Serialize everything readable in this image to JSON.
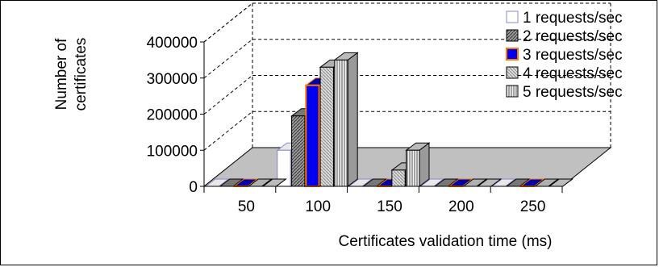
{
  "chart_data": {
    "type": "bar",
    "title": "",
    "xlabel": "Certificates validation time (ms)",
    "ylabel_lines": [
      "Number of",
      "certificates"
    ],
    "categories": [
      "50",
      "100",
      "150",
      "200",
      "250"
    ],
    "y_ticks": [
      "0",
      "100000",
      "200000",
      "300000",
      "400000"
    ],
    "ylim": [
      0,
      400000
    ],
    "legend_position": "top-right",
    "grid": true,
    "series": [
      {
        "name": "1 requests/sec",
        "values": [
          0,
          100000,
          0,
          0,
          0
        ],
        "color": "#ffffff",
        "edge": "#8888cc"
      },
      {
        "name": "2 requests/sec",
        "values": [
          0,
          195000,
          0,
          0,
          0
        ],
        "color": "#808080",
        "edge": "#000000"
      },
      {
        "name": "3 requests/sec",
        "values": [
          0,
          280000,
          0,
          0,
          0
        ],
        "color": "#0000ee",
        "edge": "#ff7700"
      },
      {
        "name": "4 requests/sec",
        "values": [
          0,
          330000,
          45000,
          0,
          0
        ],
        "color": "#c8c8c8",
        "edge": "#000000"
      },
      {
        "name": "5 requests/sec",
        "values": [
          0,
          350000,
          100000,
          0,
          0
        ],
        "color": "#d6d6d6",
        "edge": "#000000"
      }
    ]
  }
}
